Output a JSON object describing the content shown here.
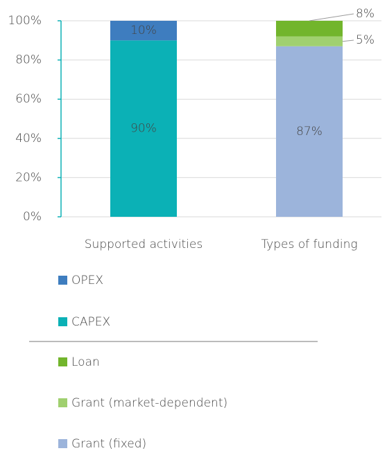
{
  "chart_data": {
    "type": "stacked_bar",
    "categories": [
      "Supported activities",
      "Types of funding"
    ],
    "series": [
      {
        "name": "OPEX",
        "color": "#3e7dbf",
        "values": [
          10,
          null
        ],
        "value_labels": [
          "10%",
          null
        ]
      },
      {
        "name": "CAPEX",
        "color": "#0bb1b6",
        "values": [
          90,
          null
        ],
        "value_labels": [
          "90%",
          null
        ]
      },
      {
        "name": "Loan",
        "color": "#72b52c",
        "values": [
          null,
          8
        ],
        "value_labels": [
          null,
          "8%"
        ]
      },
      {
        "name": "Grant (market-dependent)",
        "color": "#a0d06f",
        "values": [
          null,
          5
        ],
        "value_labels": [
          null,
          "5%"
        ]
      },
      {
        "name": "Grant (fixed)",
        "color": "#9cb4db",
        "values": [
          null,
          87
        ],
        "value_labels": [
          null,
          "87%"
        ]
      }
    ],
    "ylim": [
      0,
      100
    ],
    "yticks": [
      {
        "value": 0,
        "label": "0%"
      },
      {
        "value": 20,
        "label": "20%"
      },
      {
        "value": 40,
        "label": "40%"
      },
      {
        "value": 60,
        "label": "60%"
      },
      {
        "value": 80,
        "label": "80%"
      },
      {
        "value": 100,
        "label": "100%"
      }
    ],
    "grid": true
  }
}
